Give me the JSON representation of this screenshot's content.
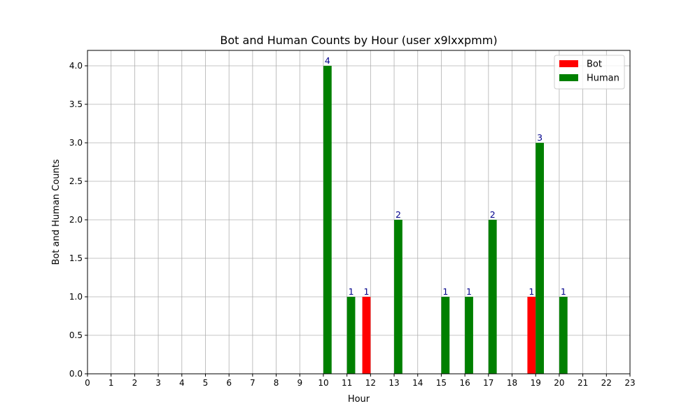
{
  "chart_data": {
    "type": "bar",
    "title": "Bot and Human Counts by Hour (user x9lxxpmm)",
    "xlabel": "Hour",
    "ylabel": "Bot and Human Counts",
    "x": [
      0,
      1,
      2,
      3,
      4,
      5,
      6,
      7,
      8,
      9,
      10,
      11,
      12,
      13,
      14,
      15,
      16,
      17,
      18,
      19,
      20,
      21,
      22,
      23
    ],
    "xlim": [
      0,
      23
    ],
    "ylim": [
      0,
      4.2
    ],
    "yticks": [
      "0.0",
      "0.5",
      "1.0",
      "1.5",
      "2.0",
      "2.5",
      "3.0",
      "3.5",
      "4.0"
    ],
    "grid": true,
    "legend_position": "top-right",
    "series": [
      {
        "name": "Bot",
        "color": "#ff0000",
        "values": [
          0,
          0,
          0,
          0,
          0,
          0,
          0,
          0,
          0,
          0,
          0,
          0,
          1,
          0,
          0,
          0,
          0,
          0,
          0,
          1,
          0,
          0,
          0,
          0
        ]
      },
      {
        "name": "Human",
        "color": "#008000",
        "values": [
          0,
          0,
          0,
          0,
          0,
          0,
          0,
          0,
          0,
          0,
          4,
          1,
          0,
          2,
          0,
          1,
          1,
          2,
          0,
          3,
          1,
          0,
          0,
          0
        ]
      }
    ],
    "data_label_color": "#00008b"
  }
}
